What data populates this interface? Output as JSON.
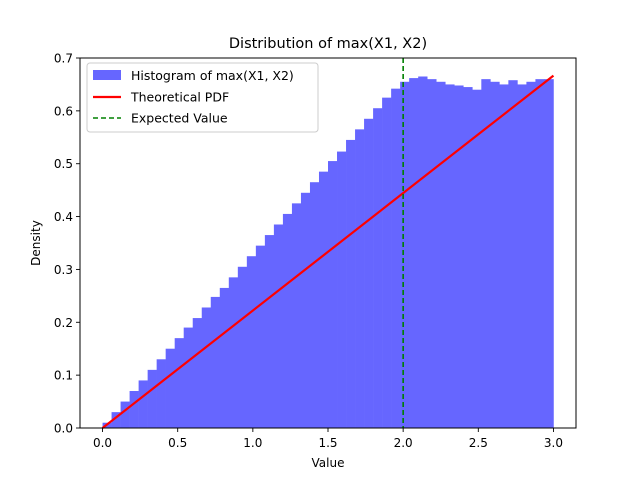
{
  "chart_data": {
    "type": "bar",
    "title": "Distribution of max(X1, X2)",
    "xlabel": "Value",
    "ylabel": "Density",
    "xlim": [
      -0.15,
      3.15
    ],
    "ylim": [
      0.0,
      0.7
    ],
    "xticks": [
      "0.0",
      "0.5",
      "1.0",
      "1.5",
      "2.0",
      "2.5",
      "3.0"
    ],
    "xtick_values": [
      0.0,
      0.5,
      1.0,
      1.5,
      2.0,
      2.5,
      3.0
    ],
    "yticks": [
      "0.0",
      "0.1",
      "0.2",
      "0.3",
      "0.4",
      "0.5",
      "0.6",
      "0.7"
    ],
    "ytick_values": [
      0.0,
      0.1,
      0.2,
      0.3,
      0.4,
      0.5,
      0.6,
      0.7
    ],
    "grid": false,
    "legend_position": "top-left",
    "histogram": {
      "name": "Histogram of max(X1, X2)",
      "color": "#6666ff",
      "bin_width": 0.06,
      "bin_start": 0.0,
      "densities": [
        0.01,
        0.03,
        0.05,
        0.07,
        0.09,
        0.11,
        0.13,
        0.15,
        0.17,
        0.19,
        0.208,
        0.228,
        0.248,
        0.265,
        0.285,
        0.305,
        0.325,
        0.345,
        0.365,
        0.385,
        0.405,
        0.425,
        0.445,
        0.465,
        0.485,
        0.505,
        0.523,
        0.545,
        0.565,
        0.585,
        0.605,
        0.625,
        0.642,
        0.655,
        0.662,
        0.665,
        0.66,
        0.655,
        0.65,
        0.648,
        0.645,
        0.64,
        0.66,
        0.655,
        0.65,
        0.658,
        0.65,
        0.655,
        0.66,
        0.66
      ]
    },
    "series": [
      {
        "name": "Theoretical PDF",
        "color": "#ff0000",
        "style": "solid",
        "x": [
          0.0,
          3.0
        ],
        "y": [
          0.0,
          0.6667
        ]
      },
      {
        "name": "Expected Value",
        "color": "#008000",
        "style": "dashed",
        "x_value": 2.0
      }
    ]
  }
}
